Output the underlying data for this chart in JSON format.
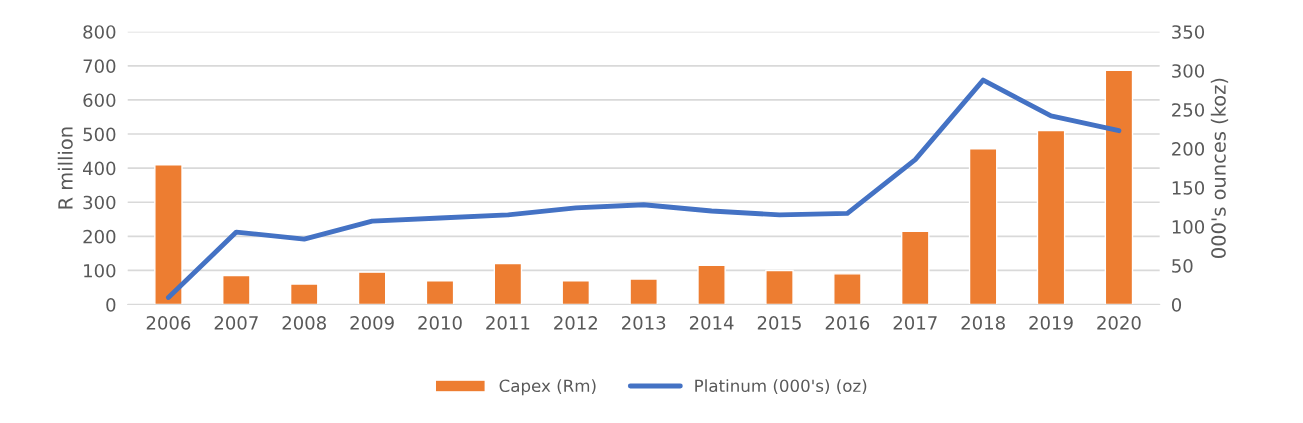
{
  "chart_data": {
    "type": "bar",
    "categories": [
      "2006",
      "2007",
      "2008",
      "2009",
      "2010",
      "2011",
      "2012",
      "2013",
      "2014",
      "2015",
      "2016",
      "2017",
      "2018",
      "2019",
      "2020"
    ],
    "series": [
      {
        "name": "Capex (Rm)",
        "color": "#ed7d31",
        "values": [
          410,
          85,
          60,
          95,
          70,
          120,
          70,
          75,
          115,
          100,
          90,
          215,
          457,
          510,
          687
        ]
      },
      {
        "name": "Platinum (000's) (oz)",
        "type": "line",
        "axis": "y2",
        "color": "#4472c4",
        "values": [
          9,
          93,
          84,
          107,
          111,
          115,
          124,
          128,
          120,
          115,
          117,
          186,
          288,
          242,
          223
        ]
      }
    ],
    "ylabel": "R million",
    "y2label": "000's ounces (koz)",
    "ylim": [
      0,
      800
    ],
    "yticks": [
      0,
      100,
      200,
      300,
      400,
      500,
      600,
      700,
      800
    ],
    "y2lim": [
      0,
      350
    ],
    "y2ticks": [
      0,
      50,
      100,
      150,
      200,
      250,
      300,
      350
    ],
    "grid": "y",
    "legend": "bottom"
  }
}
